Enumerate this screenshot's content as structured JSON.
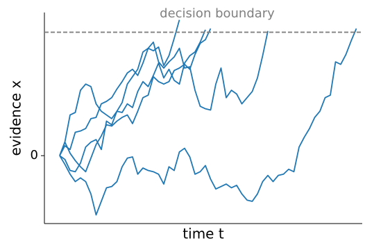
{
  "chart_data": {
    "type": "line",
    "xlabel": "time t",
    "ylabel": "evidence x",
    "annotation": "decision boundary",
    "boundary": 1,
    "boundary_color": "#808080",
    "x": [
      0,
      1,
      2,
      3,
      4,
      5,
      6,
      7,
      8,
      9,
      10,
      11,
      12,
      13,
      14,
      15,
      16,
      17,
      18,
      19,
      20,
      21,
      22,
      23,
      24,
      25,
      26,
      27,
      28,
      29,
      30,
      31,
      32,
      33,
      34,
      35,
      36,
      37,
      38,
      39,
      40,
      41,
      42,
      43,
      44,
      45,
      46,
      47,
      48,
      49,
      50,
      51,
      52,
      53,
      54,
      55,
      56,
      57
    ],
    "xlim": [
      -2.93,
      58.13
    ],
    "ylim": [
      -0.55,
      1.16
    ],
    "yticks": [
      0
    ],
    "series": [
      {
        "color": "#1f77b4",
        "values": [
          0,
          -0.07,
          -0.15,
          -0.21,
          -0.18,
          -0.21,
          -0.31,
          -0.48,
          -0.37,
          -0.26,
          -0.25,
          -0.21,
          -0.09,
          -0.02,
          -0.01,
          -0.15,
          -0.1,
          -0.12,
          -0.13,
          -0.15,
          -0.23,
          -0.09,
          -0.12,
          0.03,
          0.06,
          -0.01,
          -0.15,
          -0.13,
          -0.08,
          -0.19,
          -0.27,
          -0.25,
          -0.23,
          -0.26,
          -0.24,
          -0.31,
          -0.36,
          -0.37,
          -0.31,
          -0.21,
          -0.16,
          -0.21,
          -0.16,
          -0.15,
          -0.11,
          -0.13,
          0.07,
          0.15,
          0.22,
          0.31,
          0.36,
          0.47,
          0.49,
          0.76,
          0.74,
          0.82,
          0.93,
          1.03
        ]
      },
      {
        "color": "#1f77b4",
        "values": [
          0,
          0.11,
          0.33,
          0.35,
          0.53,
          0.58,
          0.56,
          0.42,
          0.36,
          0.33,
          0.3,
          0.36,
          0.43,
          0.58,
          0.64,
          0.7,
          0.84,
          0.87,
          0.92,
          0.76,
          0.71,
          0.76,
          0.8,
          0.87,
          0.71,
          0.72,
          0.53,
          0.4,
          0.38,
          0.37,
          0.58,
          0.71,
          0.47,
          0.53,
          0.5,
          0.42,
          0.47,
          0.52,
          0.63,
          0.81,
          1.01,
          null,
          null,
          null,
          null,
          null,
          null,
          null,
          null,
          null,
          null,
          null,
          null,
          null,
          null,
          null,
          null,
          null
        ]
      },
      {
        "color": "#1f77b4",
        "values": [
          0,
          0.08,
          0.05,
          0.19,
          0.2,
          0.22,
          0.3,
          0.31,
          0.42,
          0.44,
          0.47,
          0.54,
          0.6,
          0.67,
          0.7,
          0.65,
          0.75,
          0.87,
          0.85,
          0.88,
          0.73,
          0.81,
          0.95,
          1.1,
          null,
          null,
          null,
          null,
          null,
          null,
          null,
          null,
          null,
          null,
          null,
          null,
          null,
          null,
          null,
          null,
          null,
          null,
          null,
          null,
          null,
          null,
          null,
          null,
          null,
          null,
          null,
          null,
          null,
          null,
          null,
          null,
          null,
          null
        ]
      },
      {
        "color": "#1f77b4",
        "values": [
          0,
          -0.03,
          -0.12,
          -0.13,
          -0.06,
          0.07,
          0.11,
          0.13,
          0.05,
          0.28,
          0.25,
          0.36,
          0.35,
          0.42,
          0.39,
          0.52,
          0.6,
          0.56,
          0.65,
          0.75,
          0.63,
          0.7,
          0.61,
          0.58,
          0.75,
          0.81,
          0.84,
          0.92,
          1.02,
          null,
          null,
          null,
          null,
          null,
          null,
          null,
          null,
          null,
          null,
          null,
          null,
          null,
          null,
          null,
          null,
          null,
          null,
          null,
          null,
          null,
          null,
          null,
          null,
          null,
          null,
          null,
          null,
          null
        ]
      },
      {
        "color": "#1f77b4",
        "values": [
          0,
          0.11,
          0.02,
          -0.04,
          -0.09,
          -0.13,
          -0.02,
          0.09,
          0.16,
          0.25,
          0.24,
          0.28,
          0.31,
          0.33,
          0.26,
          0.36,
          0.47,
          0.49,
          0.64,
          0.6,
          0.58,
          0.6,
          0.69,
          0.71,
          0.74,
          0.7,
          0.82,
          0.91,
          0.94,
          1.03,
          null,
          null,
          null,
          null,
          null,
          null,
          null,
          null,
          null,
          null,
          null,
          null,
          null,
          null,
          null,
          null,
          null,
          null,
          null,
          null,
          null,
          null,
          null,
          null,
          null,
          null,
          null,
          null
        ]
      }
    ]
  }
}
